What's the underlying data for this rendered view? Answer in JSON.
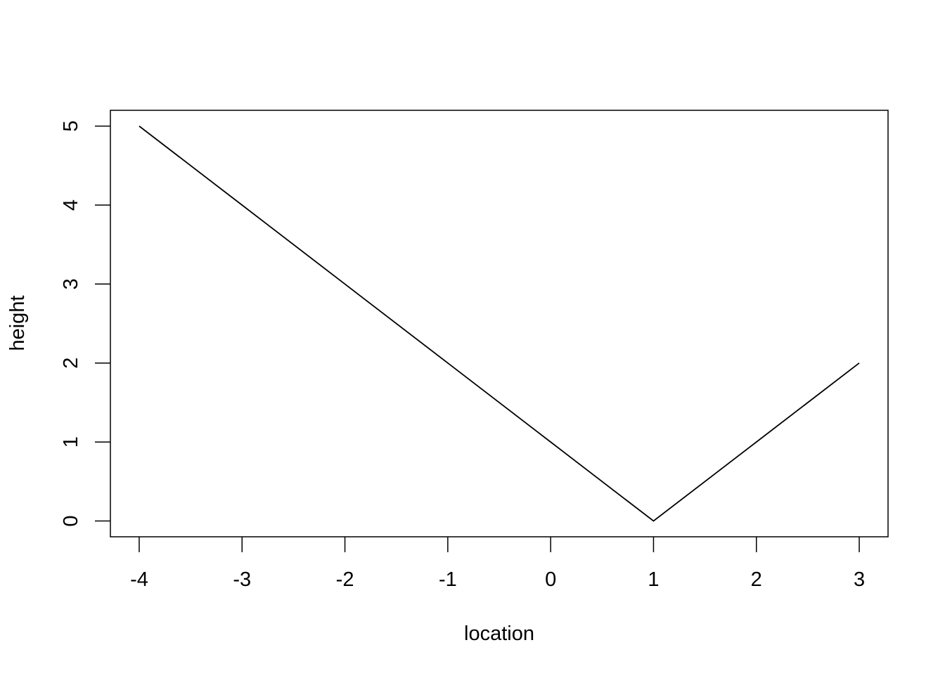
{
  "chart_data": {
    "type": "line",
    "title": "",
    "xlabel": "location",
    "ylabel": "height",
    "x": [
      -4,
      -3,
      -2,
      -1,
      0,
      1,
      2,
      3
    ],
    "series": [
      {
        "values": [
          5,
          4,
          3,
          2,
          1,
          0,
          1,
          2
        ]
      }
    ],
    "xlim": [
      -4.28,
      3.28
    ],
    "ylim": [
      -0.2,
      5.2
    ],
    "xticks": [
      -4,
      -3,
      -2,
      -1,
      0,
      1,
      2,
      3
    ],
    "xtick_labels": [
      "-4",
      "-3",
      "-2",
      "-1",
      "0",
      "1",
      "2",
      "3"
    ],
    "yticks": [
      0,
      1,
      2,
      3,
      4,
      5
    ],
    "ytick_labels": [
      "0",
      "1",
      "2",
      "3",
      "4",
      "5"
    ],
    "grid": false,
    "line_color": "#000000"
  }
}
